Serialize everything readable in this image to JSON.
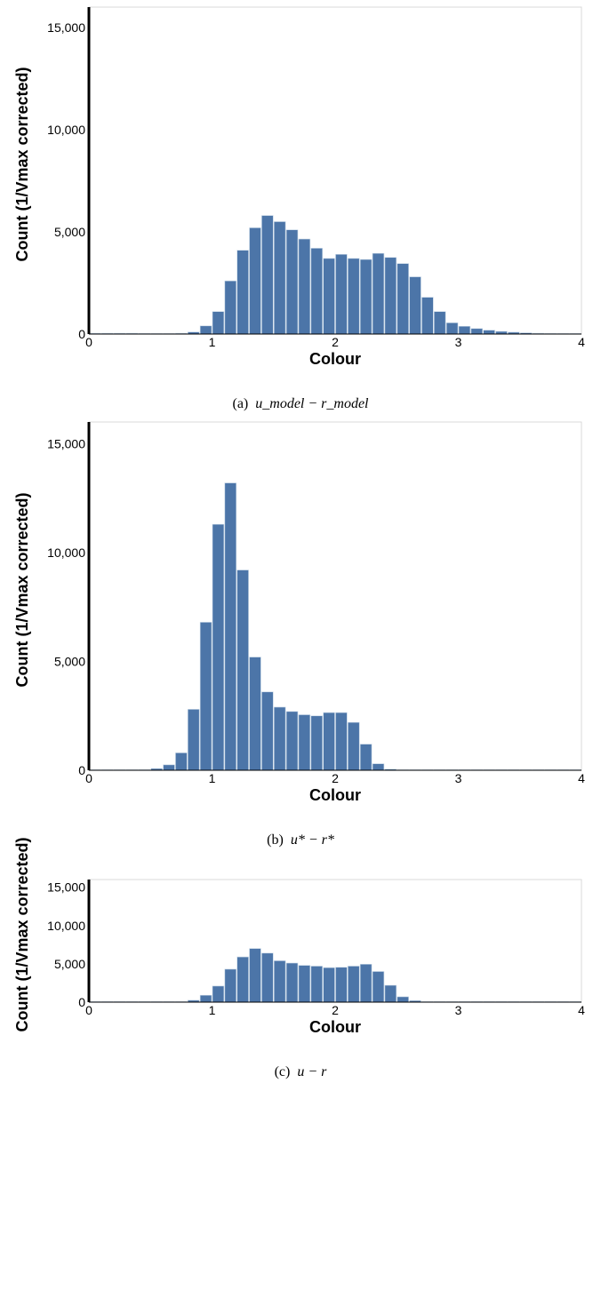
{
  "chart_data": [
    {
      "type": "bar",
      "xlabel": "Colour",
      "ylabel": "Count (1/Vmax corrected)",
      "caption": {
        "prefix": "(a)",
        "math": "u_model − r_model"
      },
      "xlim": [
        0,
        4
      ],
      "ylim": [
        0,
        16000
      ],
      "xticks": [
        "0",
        "1",
        "2",
        "3",
        "4"
      ],
      "yticks": [
        "0",
        "5,000",
        "10,000",
        "15,000"
      ],
      "bin_width": 0.1,
      "bin_starts": [
        0.0,
        0.1,
        0.2,
        0.3,
        0.4,
        0.5,
        0.6,
        0.7,
        0.8,
        0.9,
        1.0,
        1.1,
        1.2,
        1.3,
        1.4,
        1.5,
        1.6,
        1.7,
        1.8,
        1.9,
        2.0,
        2.1,
        2.2,
        2.3,
        2.4,
        2.5,
        2.6,
        2.7,
        2.8,
        2.9,
        3.0,
        3.1,
        3.2,
        3.3,
        3.4,
        3.5,
        3.6,
        3.7,
        3.8,
        3.9
      ],
      "values": [
        40,
        40,
        40,
        40,
        30,
        20,
        15,
        40,
        100,
        400,
        1100,
        2600,
        4100,
        5200,
        5800,
        5500,
        5100,
        4650,
        4200,
        3700,
        3900,
        3700,
        3650,
        3950,
        3750,
        3450,
        2800,
        1800,
        1100,
        550,
        380,
        270,
        190,
        130,
        90,
        60,
        40,
        30,
        20,
        10
      ]
    },
    {
      "type": "bar",
      "xlabel": "Colour",
      "ylabel": "Count (1/Vmax corrected)",
      "caption": {
        "prefix": "(b)",
        "math": "u* − r*"
      },
      "xlim": [
        0,
        4
      ],
      "ylim": [
        0,
        16000
      ],
      "xticks": [
        "0",
        "1",
        "2",
        "3",
        "4"
      ],
      "yticks": [
        "0",
        "5,000",
        "10,000",
        "15,000"
      ],
      "bin_width": 0.1,
      "bin_starts": [
        0.0,
        0.1,
        0.2,
        0.3,
        0.4,
        0.5,
        0.6,
        0.7,
        0.8,
        0.9,
        1.0,
        1.1,
        1.2,
        1.3,
        1.4,
        1.5,
        1.6,
        1.7,
        1.8,
        1.9,
        2.0,
        2.1,
        2.2,
        2.3,
        2.4,
        2.5,
        2.6,
        2.7,
        2.8,
        2.9,
        3.0,
        3.1,
        3.2,
        3.3,
        3.4,
        3.5,
        3.6,
        3.7,
        3.8,
        3.9
      ],
      "values": [
        20,
        20,
        20,
        20,
        30,
        80,
        250,
        800,
        2800,
        6800,
        11300,
        13200,
        9200,
        5200,
        3600,
        2900,
        2700,
        2550,
        2500,
        2650,
        2650,
        2200,
        1200,
        300,
        50,
        20,
        15,
        10,
        10,
        10,
        10,
        10,
        10,
        10,
        10,
        10,
        10,
        10,
        10,
        10
      ]
    },
    {
      "type": "bar",
      "xlabel": "Colour",
      "ylabel": "Count (1/Vmax corrected)",
      "caption": {
        "prefix": "(c)",
        "math": "u − r"
      },
      "xlim": [
        0,
        4
      ],
      "ylim": [
        0,
        16000
      ],
      "xticks": [
        "0",
        "1",
        "2",
        "3",
        "4"
      ],
      "yticks": [
        "0",
        "5,000",
        "10,000",
        "15,000"
      ],
      "bin_width": 0.1,
      "bin_starts": [
        0.0,
        0.1,
        0.2,
        0.3,
        0.4,
        0.5,
        0.6,
        0.7,
        0.8,
        0.9,
        1.0,
        1.1,
        1.2,
        1.3,
        1.4,
        1.5,
        1.6,
        1.7,
        1.8,
        1.9,
        2.0,
        2.1,
        2.2,
        2.3,
        2.4,
        2.5,
        2.6,
        2.7,
        2.8,
        2.9,
        3.0,
        3.1,
        3.2,
        3.3,
        3.4,
        3.5,
        3.6,
        3.7,
        3.8,
        3.9
      ],
      "values": [
        10,
        10,
        10,
        10,
        10,
        10,
        10,
        50,
        250,
        900,
        2100,
        4300,
        5900,
        7000,
        6400,
        5400,
        5100,
        4800,
        4700,
        4500,
        4550,
        4700,
        4950,
        4000,
        2200,
        700,
        200,
        50,
        20,
        10,
        10,
        10,
        10,
        10,
        10,
        10,
        10,
        10,
        10,
        10
      ]
    }
  ],
  "colors": {
    "bar_fill": "#4c75a8",
    "bar_cap": "#c6d6e6",
    "axis": "#000000",
    "frame": "#d9d9d9"
  }
}
